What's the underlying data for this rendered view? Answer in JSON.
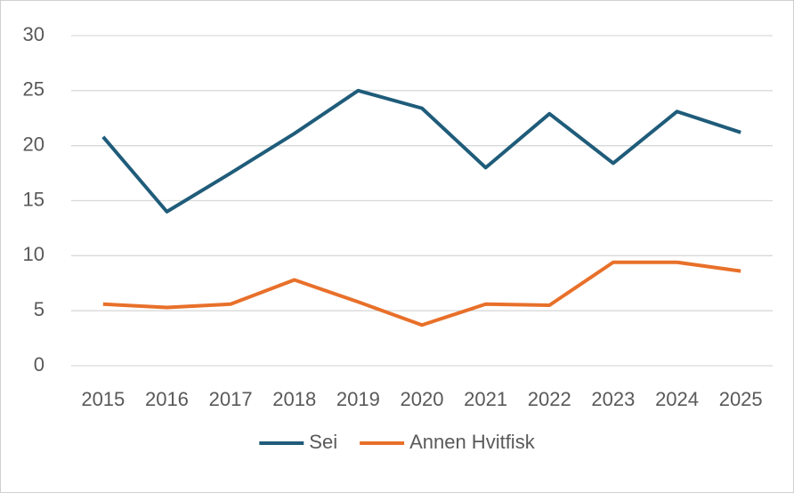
{
  "chart_data": {
    "type": "line",
    "categories": [
      "2015",
      "2016",
      "2017",
      "2018",
      "2019",
      "2020",
      "2021",
      "2022",
      "2023",
      "2024",
      "2025"
    ],
    "series": [
      {
        "name": "Sei",
        "color": "#1f5c7a",
        "values": [
          20.8,
          14.0,
          17.5,
          21.1,
          25.0,
          23.4,
          18.0,
          22.9,
          18.4,
          23.1,
          21.2
        ]
      },
      {
        "name": "Annen Hvitfisk",
        "color": "#e8702a",
        "values": [
          5.6,
          5.3,
          5.6,
          7.8,
          5.8,
          3.7,
          5.6,
          5.5,
          9.4,
          9.4,
          8.6
        ]
      }
    ],
    "ylim": [
      0,
      30
    ],
    "yticks": [
      0,
      5,
      10,
      15,
      20,
      25,
      30
    ],
    "grid": true,
    "legend": "bottom"
  }
}
